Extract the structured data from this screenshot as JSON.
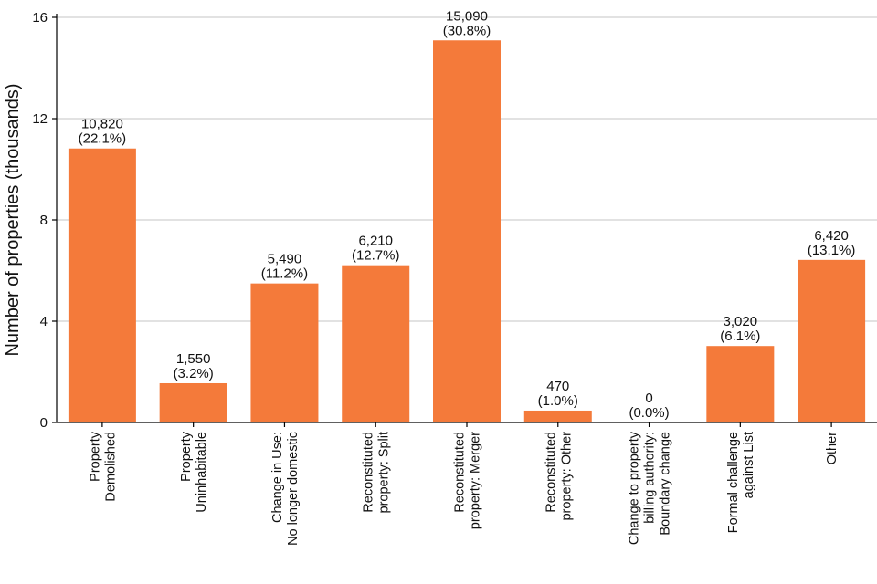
{
  "chart_data": {
    "type": "bar",
    "title": "",
    "xlabel": "",
    "ylabel": "Number of properties (thousands)",
    "ylim": [
      0,
      16
    ],
    "yticks": [
      0,
      4,
      8,
      12,
      16
    ],
    "grid": "horizontal",
    "bar_color": "#f47a3a",
    "categories": [
      [
        "Property",
        "Demolished"
      ],
      [
        "Property",
        "Uninhabitable"
      ],
      [
        "Change in Use:",
        "No longer domestic"
      ],
      [
        "Reconstituted",
        "property: Split"
      ],
      [
        "Reconstituted",
        "property: Merger"
      ],
      [
        "Reconstituted",
        "property: Other"
      ],
      [
        "Change to property",
        "billing authority:",
        "Boundary change"
      ],
      [
        "Formal challenge",
        "against List"
      ],
      [
        "Other"
      ]
    ],
    "values": [
      10.82,
      1.55,
      5.49,
      6.21,
      15.09,
      0.47,
      0,
      3.02,
      6.42
    ],
    "data_labels": [
      [
        "10,820",
        "(22.1%)"
      ],
      [
        "1,550",
        "(3.2%)"
      ],
      [
        "5,490",
        "(11.2%)"
      ],
      [
        "6,210",
        "(12.7%)"
      ],
      [
        "15,090",
        "(30.8%)"
      ],
      [
        "470",
        "(1.0%)"
      ],
      [
        "0",
        "(0.0%)"
      ],
      [
        "3,020",
        "(6.1%)"
      ],
      [
        "6,420",
        "(13.1%)"
      ]
    ]
  }
}
